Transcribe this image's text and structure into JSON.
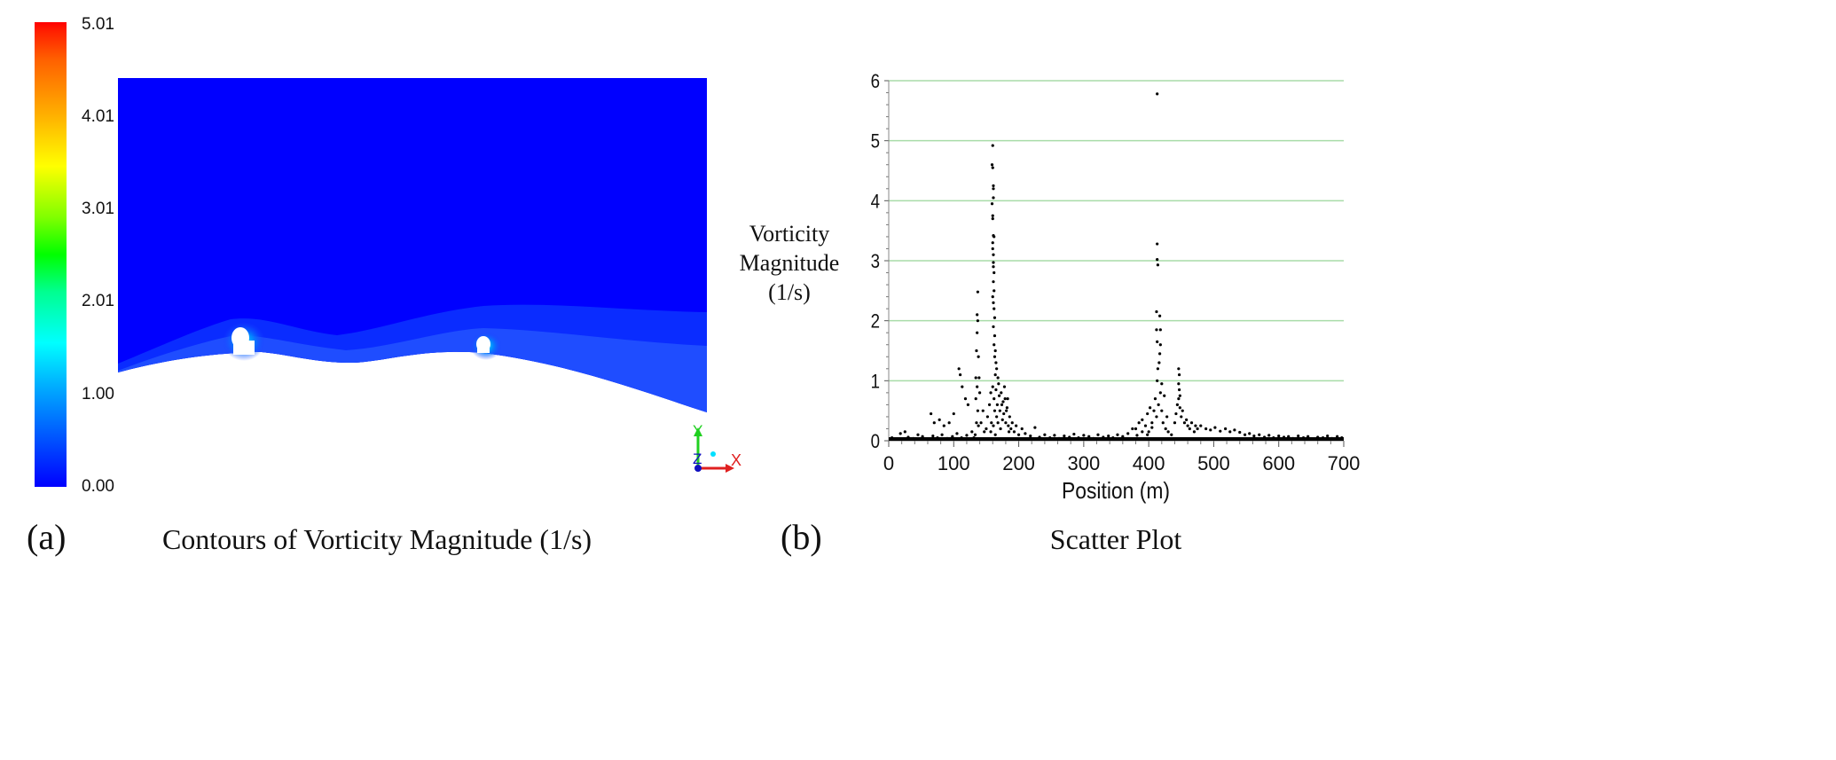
{
  "panel_a": {
    "label": "(a)",
    "title": "Contours of Vorticity Magnitude (1/s)",
    "colorbar": {
      "ticks": [
        "5.01",
        "4.01",
        "3.01",
        "2.01",
        "1.00",
        "0.00"
      ],
      "tick_values": [
        5.01,
        4.01,
        3.01,
        2.01,
        1.0,
        0.0
      ],
      "min": 0.0,
      "max": 5.01,
      "colors": [
        "#0000ff",
        "#0080ff",
        "#00ffff",
        "#00ff80",
        "#00ff00",
        "#ffff00",
        "#ff8000",
        "#ff0000"
      ]
    },
    "axes_triad": {
      "x": "X",
      "y": "Y",
      "z": "Z"
    },
    "colors": {
      "field": "#0000ff",
      "near_wall": "#1a40ff"
    }
  },
  "panel_b": {
    "label": "(b)",
    "title": "Scatter Plot"
  },
  "chart_data": {
    "type": "scatter",
    "title": "Scatter Plot",
    "xlabel": "Position (m)",
    "ylabel_lines": [
      "Vorticity",
      "Magnitude",
      "(1/s)"
    ],
    "xlim": [
      0,
      700
    ],
    "ylim": [
      0,
      6
    ],
    "xticks": [
      0,
      100,
      200,
      300,
      400,
      500,
      600,
      700
    ],
    "yticks": [
      0,
      1,
      2,
      3,
      4,
      5,
      6
    ],
    "grid": "horizontal",
    "grid_color": "#a8dca8",
    "point_color": "#000000",
    "points": [
      [
        160,
        4.92
      ],
      [
        159,
        4.6
      ],
      [
        160,
        4.55
      ],
      [
        161,
        4.25
      ],
      [
        161,
        4.2
      ],
      [
        161,
        4.05
      ],
      [
        159,
        3.95
      ],
      [
        160,
        3.75
      ],
      [
        160,
        3.7
      ],
      [
        161,
        3.42
      ],
      [
        162,
        3.4
      ],
      [
        160,
        3.3
      ],
      [
        160,
        3.2
      ],
      [
        161,
        3.1
      ],
      [
        161,
        2.97
      ],
      [
        161,
        2.9
      ],
      [
        162,
        2.8
      ],
      [
        161,
        2.65
      ],
      [
        162,
        2.5
      ],
      [
        160,
        2.4
      ],
      [
        161,
        2.3
      ],
      [
        162,
        2.2
      ],
      [
        163,
        2.05
      ],
      [
        161,
        1.9
      ],
      [
        163,
        1.75
      ],
      [
        162,
        1.6
      ],
      [
        164,
        1.5
      ],
      [
        163,
        1.4
      ],
      [
        165,
        1.3
      ],
      [
        166,
        1.2
      ],
      [
        164,
        1.1
      ],
      [
        168,
        1.05
      ],
      [
        137,
        2.48
      ],
      [
        136,
        2.1
      ],
      [
        137,
        2.0
      ],
      [
        136,
        1.8
      ],
      [
        135,
        1.5
      ],
      [
        138,
        1.4
      ],
      [
        134,
        1.05
      ],
      [
        139,
        1.05
      ],
      [
        136,
        0.9
      ],
      [
        134,
        0.7
      ],
      [
        137,
        0.5
      ],
      [
        108,
        1.2
      ],
      [
        110,
        1.1
      ],
      [
        113,
        0.9
      ],
      [
        118,
        0.7
      ],
      [
        122,
        0.6
      ],
      [
        100,
        0.45
      ],
      [
        93,
        0.3
      ],
      [
        85,
        0.25
      ],
      [
        78,
        0.35
      ],
      [
        65,
        0.45
      ],
      [
        70,
        0.3
      ],
      [
        413,
        5.78
      ],
      [
        413,
        3.28
      ],
      [
        413,
        3.02
      ],
      [
        414,
        2.93
      ],
      [
        412,
        2.15
      ],
      [
        417,
        2.08
      ],
      [
        412,
        1.85
      ],
      [
        418,
        1.85
      ],
      [
        413,
        1.65
      ],
      [
        418,
        1.6
      ],
      [
        417,
        1.45
      ],
      [
        416,
        1.3
      ],
      [
        414,
        1.2
      ],
      [
        413,
        1.0
      ],
      [
        420,
        0.95
      ],
      [
        446,
        1.2
      ],
      [
        447,
        1.1
      ],
      [
        446,
        0.95
      ],
      [
        447,
        0.85
      ],
      [
        448,
        0.75
      ],
      [
        150,
        0.2
      ],
      [
        152,
        0.4
      ],
      [
        155,
        0.6
      ],
      [
        157,
        0.8
      ],
      [
        158,
        0.3
      ],
      [
        160,
        0.9
      ],
      [
        162,
        0.7
      ],
      [
        163,
        0.5
      ],
      [
        165,
        0.85
      ],
      [
        166,
        0.4
      ],
      [
        167,
        0.6
      ],
      [
        168,
        0.3
      ],
      [
        170,
        0.75
      ],
      [
        171,
        0.5
      ],
      [
        172,
        0.2
      ],
      [
        174,
        0.6
      ],
      [
        175,
        0.35
      ],
      [
        177,
        0.45
      ],
      [
        178,
        0.9
      ],
      [
        180,
        0.3
      ],
      [
        182,
        0.55
      ],
      [
        184,
        0.25
      ],
      [
        186,
        0.4
      ],
      [
        188,
        0.2
      ],
      [
        190,
        0.3
      ],
      [
        193,
        0.15
      ],
      [
        196,
        0.25
      ],
      [
        200,
        0.1
      ],
      [
        205,
        0.2
      ],
      [
        157,
        0.15
      ],
      [
        161,
        0.25
      ],
      [
        164,
        0.1
      ],
      [
        169,
        0.95
      ],
      [
        173,
        0.8
      ],
      [
        176,
        0.65
      ],
      [
        179,
        0.7
      ],
      [
        181,
        0.5
      ],
      [
        183,
        0.7
      ],
      [
        185,
        0.15
      ],
      [
        142,
        0.3
      ],
      [
        145,
        0.5
      ],
      [
        147,
        0.15
      ],
      [
        140,
        0.8
      ],
      [
        138,
        0.25
      ],
      [
        133,
        0.1
      ],
      [
        131,
        0.05
      ],
      [
        135,
        0.3
      ],
      [
        405,
        0.3
      ],
      [
        408,
        0.5
      ],
      [
        410,
        0.7
      ],
      [
        412,
        0.4
      ],
      [
        415,
        0.6
      ],
      [
        418,
        0.8
      ],
      [
        420,
        0.5
      ],
      [
        422,
        0.3
      ],
      [
        424,
        0.75
      ],
      [
        426,
        0.2
      ],
      [
        428,
        0.4
      ],
      [
        430,
        0.15
      ],
      [
        435,
        0.1
      ],
      [
        440,
        0.3
      ],
      [
        442,
        0.45
      ],
      [
        444,
        0.6
      ],
      [
        446,
        0.7
      ],
      [
        448,
        0.55
      ],
      [
        450,
        0.4
      ],
      [
        452,
        0.5
      ],
      [
        455,
        0.3
      ],
      [
        458,
        0.35
      ],
      [
        460,
        0.25
      ],
      [
        463,
        0.2
      ],
      [
        466,
        0.3
      ],
      [
        470,
        0.15
      ],
      [
        475,
        0.2
      ],
      [
        472,
        0.25
      ],
      [
        400,
        0.15
      ],
      [
        395,
        0.25
      ],
      [
        390,
        0.35
      ],
      [
        385,
        0.3
      ],
      [
        380,
        0.2
      ],
      [
        398,
        0.45
      ],
      [
        402,
        0.55
      ],
      [
        5,
        0.05
      ],
      [
        12,
        0.03
      ],
      [
        18,
        0.12
      ],
      [
        25,
        0.15
      ],
      [
        30,
        0.06
      ],
      [
        38,
        0.04
      ],
      [
        45,
        0.1
      ],
      [
        52,
        0.07
      ],
      [
        60,
        0.03
      ],
      [
        68,
        0.08
      ],
      [
        75,
        0.05
      ],
      [
        82,
        0.1
      ],
      [
        90,
        0.04
      ],
      [
        98,
        0.07
      ],
      [
        105,
        0.12
      ],
      [
        112,
        0.05
      ],
      [
        120,
        0.09
      ],
      [
        128,
        0.15
      ],
      [
        210,
        0.12
      ],
      [
        218,
        0.08
      ],
      [
        225,
        0.22
      ],
      [
        232,
        0.06
      ],
      [
        240,
        0.1
      ],
      [
        248,
        0.05
      ],
      [
        255,
        0.09
      ],
      [
        262,
        0.04
      ],
      [
        270,
        0.08
      ],
      [
        278,
        0.06
      ],
      [
        285,
        0.11
      ],
      [
        292,
        0.05
      ],
      [
        300,
        0.09
      ],
      [
        308,
        0.07
      ],
      [
        315,
        0.04
      ],
      [
        322,
        0.1
      ],
      [
        330,
        0.06
      ],
      [
        338,
        0.08
      ],
      [
        345,
        0.05
      ],
      [
        352,
        0.1
      ],
      [
        360,
        0.07
      ],
      [
        368,
        0.12
      ],
      [
        375,
        0.2
      ],
      [
        382,
        0.09
      ],
      [
        390,
        0.15
      ],
      [
        398,
        0.1
      ],
      [
        405,
        0.22
      ],
      [
        480,
        0.25
      ],
      [
        488,
        0.2
      ],
      [
        495,
        0.18
      ],
      [
        502,
        0.22
      ],
      [
        510,
        0.16
      ],
      [
        518,
        0.2
      ],
      [
        525,
        0.15
      ],
      [
        532,
        0.18
      ],
      [
        540,
        0.14
      ],
      [
        548,
        0.1
      ],
      [
        555,
        0.12
      ],
      [
        562,
        0.08
      ],
      [
        570,
        0.1
      ],
      [
        578,
        0.06
      ],
      [
        585,
        0.09
      ],
      [
        592,
        0.05
      ],
      [
        600,
        0.08
      ],
      [
        608,
        0.06
      ],
      [
        615,
        0.07
      ],
      [
        622,
        0.04
      ],
      [
        630,
        0.08
      ],
      [
        638,
        0.05
      ],
      [
        645,
        0.07
      ],
      [
        652,
        0.03
      ],
      [
        660,
        0.06
      ],
      [
        668,
        0.05
      ],
      [
        675,
        0.08
      ],
      [
        682,
        0.04
      ],
      [
        690,
        0.07
      ],
      [
        697,
        0.05
      ]
    ]
  }
}
